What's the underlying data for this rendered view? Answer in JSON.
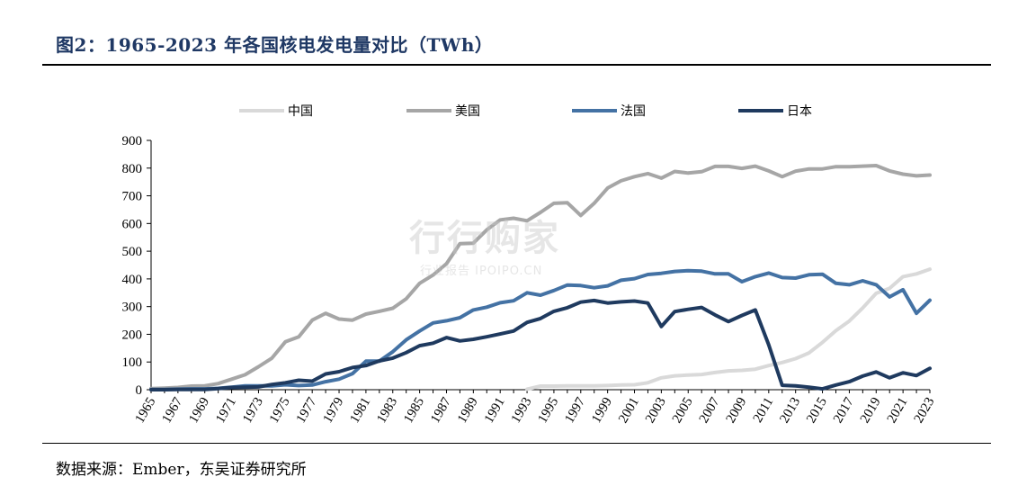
{
  "header": {
    "title": "图2：1965-2023 年各国核电发电量对比（TWh）"
  },
  "footer": {
    "source": "数据来源：Ember，东吴证券研究所"
  },
  "watermark": {
    "main": "行行购家",
    "sub": "行业报告 IPOIPO.CN"
  },
  "chart_data": {
    "type": "line",
    "x": [
      1965,
      1966,
      1967,
      1968,
      1969,
      1970,
      1971,
      1972,
      1973,
      1974,
      1975,
      1976,
      1977,
      1978,
      1979,
      1980,
      1981,
      1982,
      1983,
      1984,
      1985,
      1986,
      1987,
      1988,
      1989,
      1990,
      1991,
      1992,
      1993,
      1994,
      1995,
      1996,
      1997,
      1998,
      1999,
      2000,
      2001,
      2002,
      2003,
      2004,
      2005,
      2006,
      2007,
      2008,
      2009,
      2010,
      2011,
      2012,
      2013,
      2014,
      2015,
      2016,
      2017,
      2018,
      2019,
      2020,
      2021,
      2022,
      2023
    ],
    "xticks": [
      "1965",
      "1967",
      "1969",
      "1971",
      "1973",
      "1975",
      "1977",
      "1979",
      "1981",
      "1983",
      "1985",
      "1987",
      "1989",
      "1991",
      "1993",
      "1995",
      "1997",
      "1999",
      "2001",
      "2003",
      "2005",
      "2007",
      "2009",
      "2011",
      "2013",
      "2015",
      "2017",
      "2019",
      "2021",
      "2023"
    ],
    "ylim": [
      0,
      900
    ],
    "yticks": [
      "0",
      "100",
      "200",
      "300",
      "400",
      "500",
      "600",
      "700",
      "800",
      "900"
    ],
    "legend_position": "top",
    "series": [
      {
        "name": "中国",
        "color": "#d9d9d9",
        "values": [
          null,
          null,
          null,
          null,
          null,
          null,
          null,
          null,
          null,
          null,
          null,
          null,
          null,
          null,
          null,
          null,
          null,
          null,
          null,
          null,
          null,
          null,
          null,
          null,
          null,
          null,
          null,
          null,
          2,
          13,
          13,
          14,
          14,
          14,
          15,
          17,
          18,
          25,
          43,
          50,
          53,
          55,
          62,
          68,
          70,
          74,
          87,
          98,
          112,
          133,
          171,
          213,
          248,
          295,
          348,
          366,
          408,
          418,
          435
        ]
      },
      {
        "name": "美国",
        "color": "#a6a6a6",
        "values": [
          4,
          6,
          8,
          13,
          14,
          22,
          38,
          54,
          83,
          114,
          173,
          191,
          251,
          276,
          255,
          251,
          273,
          283,
          294,
          328,
          384,
          414,
          455,
          527,
          529,
          577,
          613,
          619,
          610,
          640,
          673,
          675,
          629,
          673,
          728,
          754,
          769,
          780,
          764,
          788,
          782,
          787,
          806,
          806,
          799,
          807,
          790,
          769,
          789,
          797,
          797,
          805,
          805,
          807,
          809,
          790,
          778,
          772,
          775
        ]
      },
      {
        "name": "法国",
        "color": "#4472a4",
        "values": [
          1,
          1,
          2,
          3,
          3,
          5,
          9,
          14,
          14,
          14,
          18,
          15,
          17,
          29,
          38,
          58,
          103,
          103,
          137,
          180,
          212,
          241,
          249,
          260,
          288,
          298,
          314,
          321,
          350,
          341,
          358,
          378,
          376,
          368,
          375,
          395,
          401,
          416,
          420,
          427,
          430,
          428,
          418,
          418,
          390,
          408,
          421,
          405,
          403,
          415,
          417,
          384,
          379,
          393,
          379,
          335,
          361,
          276,
          323
        ]
      },
      {
        "name": "日本",
        "color": "#1f3a5f",
        "values": [
          0,
          0,
          1,
          1,
          1,
          4,
          8,
          9,
          10,
          19,
          25,
          34,
          31,
          57,
          65,
          80,
          87,
          104,
          114,
          134,
          159,
          168,
          188,
          176,
          182,
          191,
          201,
          212,
          243,
          257,
          283,
          296,
          316,
          322,
          313,
          317,
          320,
          313,
          228,
          282,
          290,
          297,
          270,
          246,
          268,
          288,
          162,
          16,
          14,
          9,
          3,
          17,
          29,
          49,
          64,
          43,
          61,
          51,
          77
        ]
      }
    ]
  }
}
